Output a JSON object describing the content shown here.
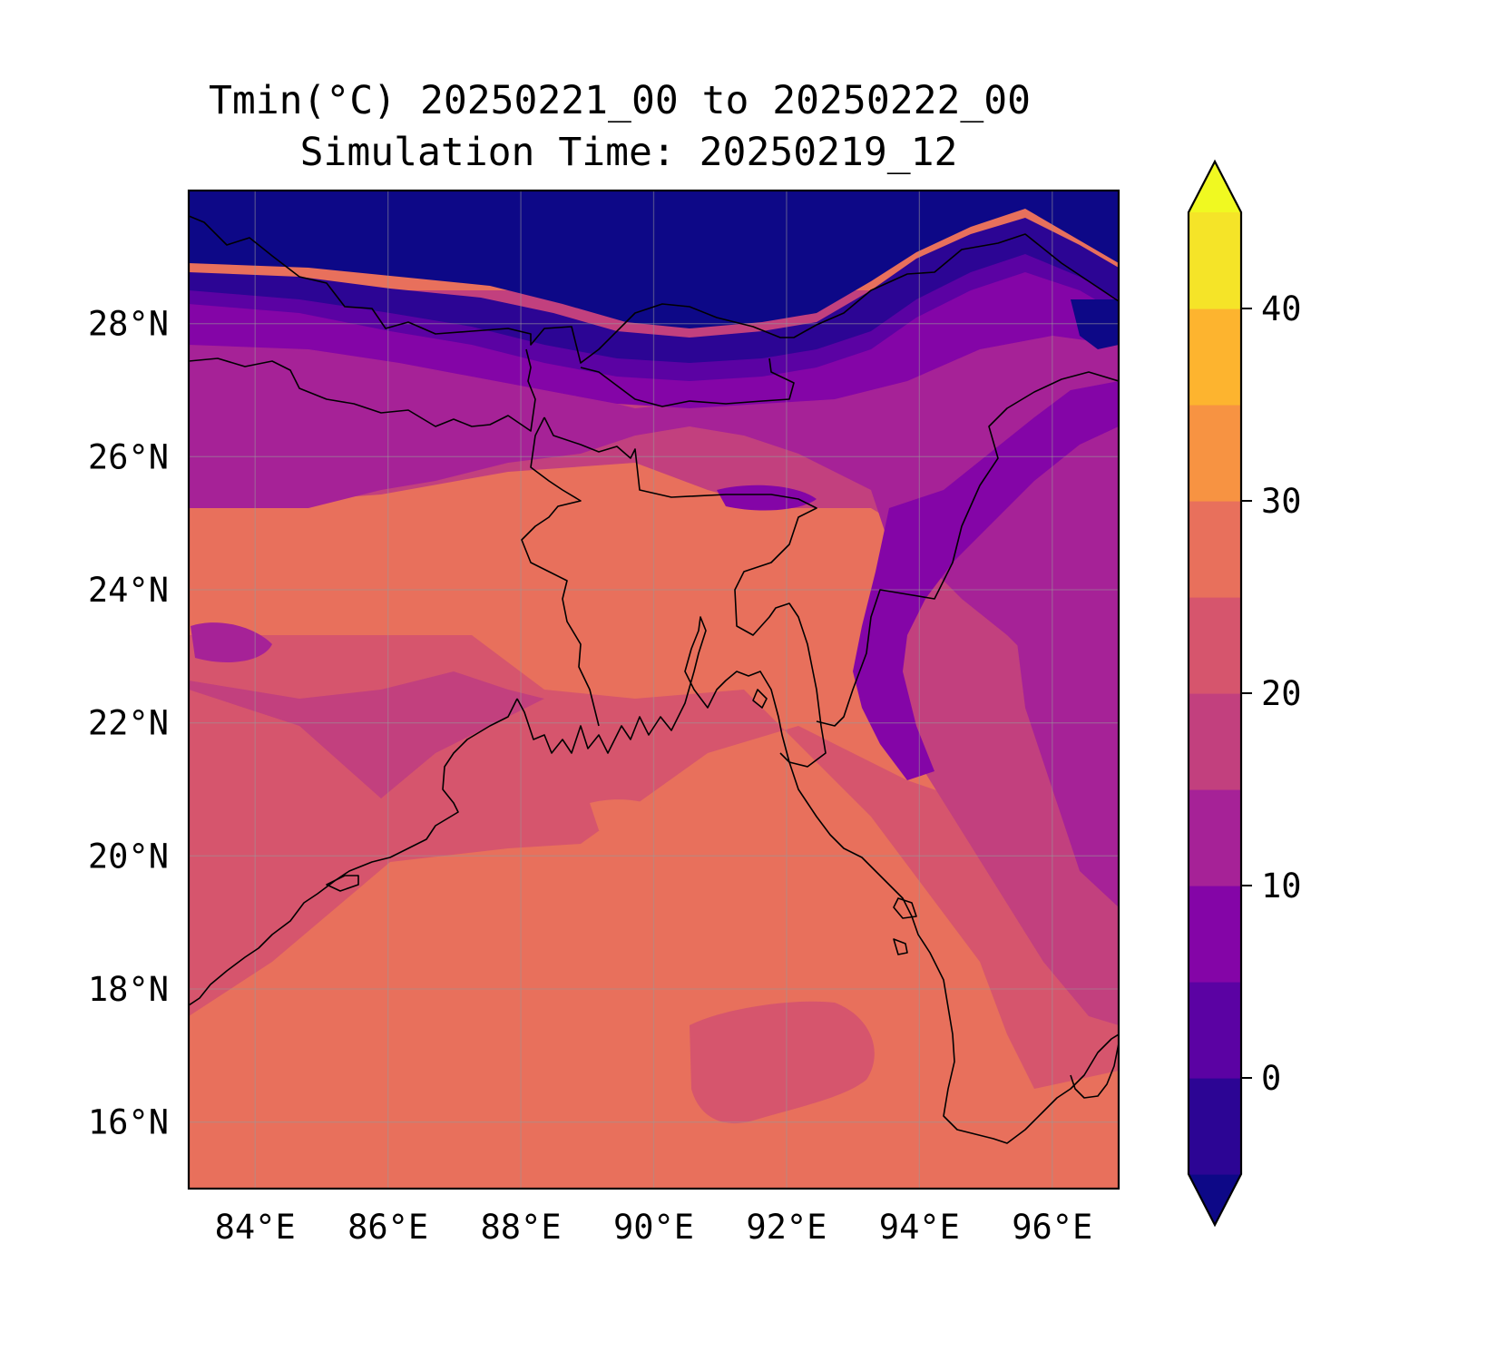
{
  "title": {
    "line1": "Tmin(°C) 20250221_00 to 20250222_00",
    "line2": "Simulation Time: 20250219_12"
  },
  "map": {
    "region": "Bangladesh and surroundings",
    "lon_range": [
      83,
      97
    ],
    "lat_range": [
      15,
      30
    ],
    "x_tick_labels": [
      "84°E",
      "86°E",
      "88°E",
      "90°E",
      "92°E",
      "94°E",
      "96°E"
    ],
    "x_tick_values": [
      84,
      86,
      88,
      90,
      92,
      94,
      96
    ],
    "y_tick_labels": [
      "28°N",
      "26°N",
      "24°N",
      "22°N",
      "20°N",
      "18°N",
      "16°N"
    ],
    "y_tick_values": [
      28,
      26,
      24,
      22,
      20,
      18,
      16
    ],
    "gridlines": true,
    "colormap": "plasma"
  },
  "colorbar": {
    "levels": [
      -5,
      0,
      5,
      10,
      15,
      20,
      25,
      30,
      35,
      40,
      45
    ],
    "tick_labels": [
      "0",
      "10",
      "20",
      "30",
      "40"
    ],
    "tick_values": [
      0,
      10,
      20,
      30,
      40
    ],
    "extend": "both",
    "colors": [
      "#0d0887",
      "#2c0594",
      "#5b02a3",
      "#8405a7",
      "#a62297",
      "#c2407e",
      "#d6556d",
      "#e8705c",
      "#f79342",
      "#fdb42f",
      "#f5e428",
      "#f0f921"
    ]
  },
  "colors": {
    "low": "#0d0887",
    "mid_purple": "#8405a7",
    "magenta": "#a62297",
    "pink": "#c2407e",
    "rose": "#d6556d",
    "salmon": "#e8705c",
    "coastline": "#000000"
  }
}
